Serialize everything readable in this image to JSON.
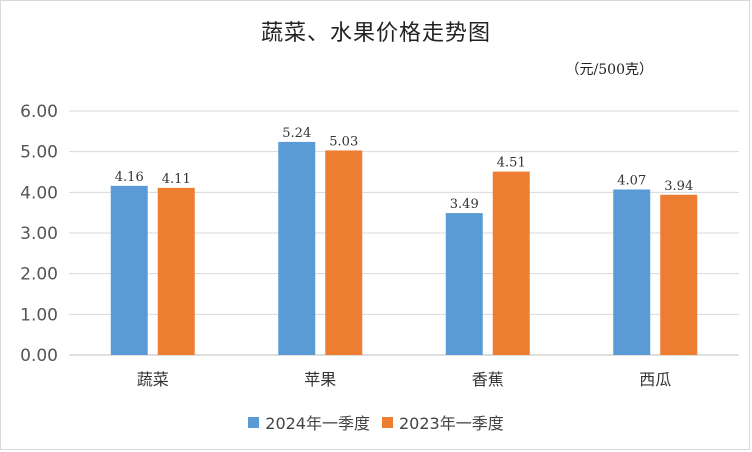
{
  "chart_data": {
    "type": "bar",
    "title": "蔬菜、水果价格走势图",
    "unit_note": "（元/500克）",
    "categories": [
      "蔬菜",
      "苹果",
      "香蕉",
      "西瓜"
    ],
    "series": [
      {
        "name": "2024年一季度",
        "color": "#5b9bd5",
        "values": [
          4.16,
          5.24,
          3.49,
          4.07
        ],
        "labels": [
          "4.16",
          "5.24",
          "3.49",
          "4.07"
        ]
      },
      {
        "name": "2023年一季度",
        "color": "#ed7d31",
        "values": [
          4.11,
          5.03,
          4.51,
          3.94
        ],
        "labels": [
          "4.11",
          "5.03",
          "4.51",
          "3.94"
        ]
      }
    ],
    "ylim": [
      0,
      6
    ],
    "yticks": [
      "0.00",
      "1.00",
      "2.00",
      "3.00",
      "4.00",
      "5.00",
      "6.00"
    ],
    "grid": true,
    "legend_position": "bottom"
  }
}
